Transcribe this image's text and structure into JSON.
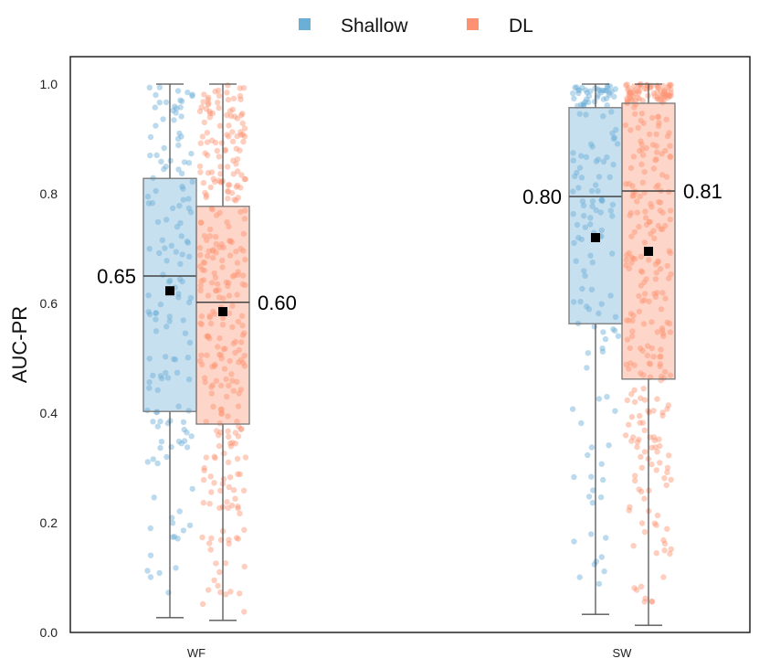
{
  "chart_data": {
    "type": "box",
    "ylabel": "AUC-PR",
    "ylim": [
      0.0,
      1.0
    ],
    "yticks": [
      "0.0",
      "0.2",
      "0.4",
      "0.6",
      "0.8",
      "1.0"
    ],
    "categories": [
      "WF",
      "SW"
    ],
    "legend_position": "top-center",
    "grid": false,
    "series": [
      {
        "name": "Shallow",
        "color": "#6baed6",
        "boxes": [
          {
            "category": "WF",
            "whisker_low": 0.027,
            "q1": 0.403,
            "median": 0.65,
            "q3": 0.828,
            "whisker_high": 1.0,
            "mean": 0.623,
            "median_label": "0.65"
          },
          {
            "category": "SW",
            "whisker_low": 0.033,
            "q1": 0.563,
            "median": 0.795,
            "q3": 0.957,
            "whisker_high": 1.0,
            "mean": 0.72,
            "median_label": "0.80"
          }
        ]
      },
      {
        "name": "DL",
        "color": "#fc9272",
        "boxes": [
          {
            "category": "WF",
            "whisker_low": 0.022,
            "q1": 0.38,
            "median": 0.602,
            "q3": 0.777,
            "whisker_high": 1.0,
            "mean": 0.585,
            "median_label": "0.60"
          },
          {
            "category": "SW",
            "whisker_low": 0.013,
            "q1": 0.462,
            "median": 0.805,
            "q3": 0.965,
            "whisker_high": 1.0,
            "mean": 0.695,
            "median_label": "0.81"
          }
        ]
      }
    ]
  }
}
